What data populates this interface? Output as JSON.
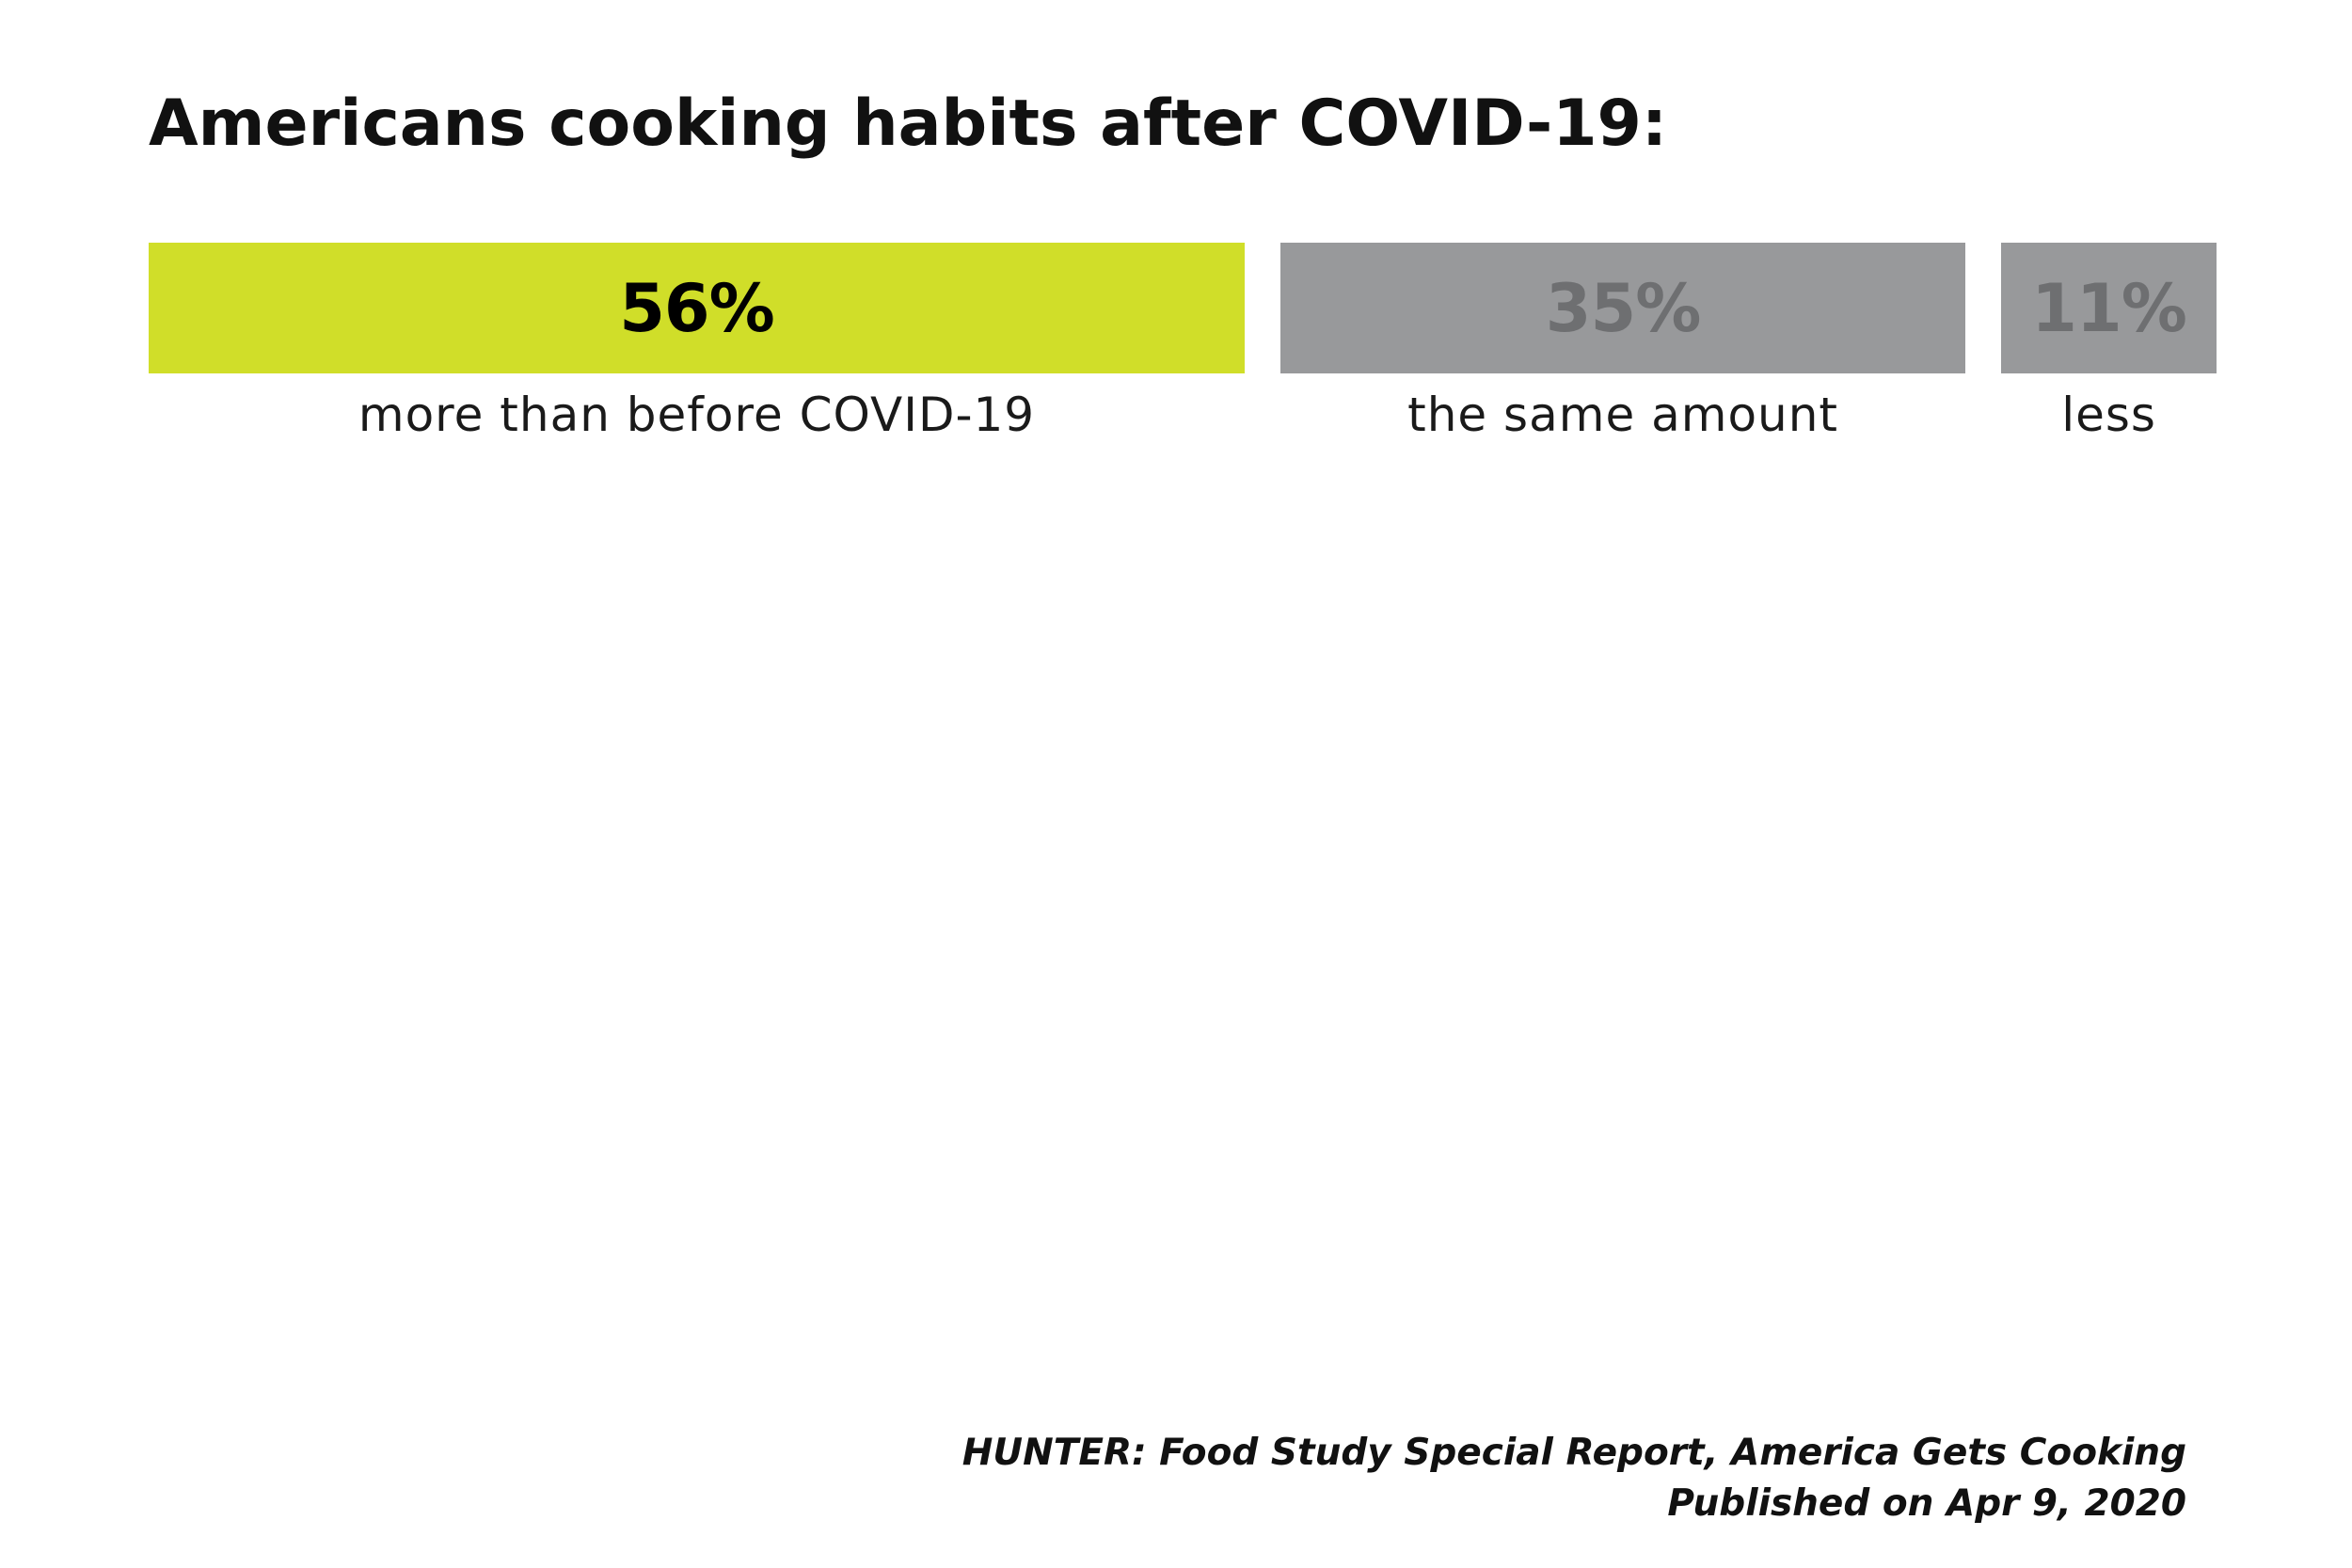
{
  "chart_data": {
    "type": "bar",
    "title": "Americans cooking habits after COVID-19:",
    "categories": [
      "more than before COVID-19",
      "the same amount",
      "less"
    ],
    "values": [
      56,
      35,
      11
    ],
    "value_labels": [
      "56%",
      "35%",
      "11%"
    ],
    "unit": "%",
    "orientation": "horizontal-stacked",
    "grid": false,
    "legend": "none",
    "colors": {
      "bars": [
        "#d0de29",
        "#98999b",
        "#98999b"
      ],
      "value_text": [
        "#000000",
        "#6e6f71",
        "#6e6f71"
      ]
    }
  },
  "source": {
    "line1": "HUNTER: Food Study Special Report, America Gets Cooking",
    "line2": "Published on Apr 9, 2020"
  }
}
